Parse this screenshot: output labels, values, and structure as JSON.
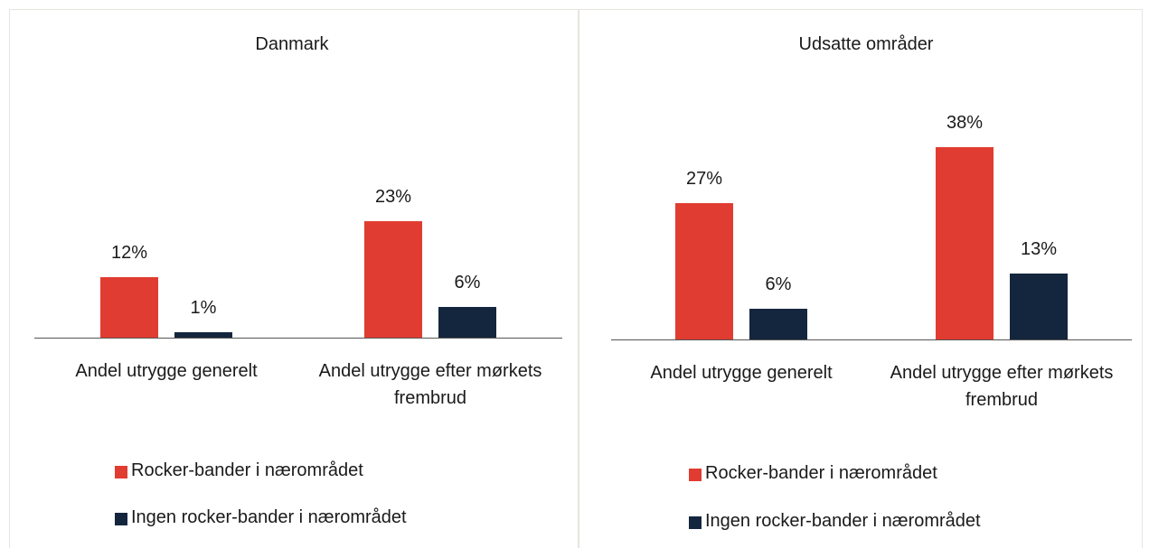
{
  "chart_data": [
    {
      "type": "bar",
      "title": "Danmark",
      "categories": [
        "Andel utrygge generelt",
        "Andel utrygge efter mørkets frembrud"
      ],
      "series": [
        {
          "name": "Rocker-bander i nærområdet",
          "color": "#e03c31",
          "values": [
            12,
            23
          ],
          "value_labels": [
            "12%",
            "23%"
          ]
        },
        {
          "name": "Ingen rocker-bander i nærområdet",
          "color": "#14263d",
          "values": [
            1,
            6
          ],
          "value_labels": [
            "1%",
            "6%"
          ]
        }
      ]
    },
    {
      "type": "bar",
      "title": "Udsatte områder",
      "categories": [
        "Andel utrygge generelt",
        "Andel utrygge efter mørkets frembrud"
      ],
      "series": [
        {
          "name": "Rocker-bander i nærområdet",
          "color": "#e03c31",
          "values": [
            27,
            38
          ],
          "value_labels": [
            "27%",
            "38%"
          ]
        },
        {
          "name": "Ingen rocker-bander i nærområdet",
          "color": "#14263d",
          "values": [
            6,
            13
          ],
          "value_labels": [
            "6%",
            "13%"
          ]
        }
      ]
    }
  ]
}
